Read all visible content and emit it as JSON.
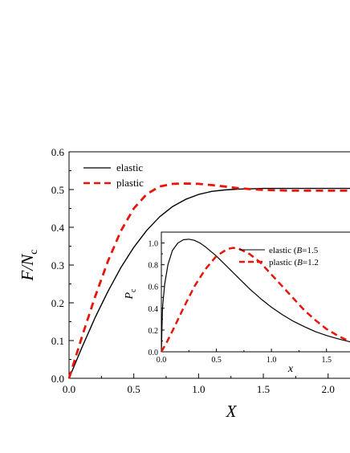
{
  "chart_data": [
    {
      "type": "line",
      "xlabel": {
        "main": "X",
        "sub": ""
      },
      "ylabel": {
        "main": "F/N",
        "sub": "c"
      },
      "xlim": [
        0.0,
        2.2
      ],
      "ylim": [
        0.0,
        0.6
      ],
      "xticks": [
        "0.0",
        "0.5",
        "1.0",
        "1.5",
        "2.0"
      ],
      "yticks": [
        "0.0",
        "0.1",
        "0.2",
        "0.3",
        "0.4",
        "0.5",
        "0.6"
      ],
      "legend_position": "top-left",
      "series": [
        {
          "name": "elastic",
          "color": "#000000",
          "style": "solid",
          "x": [
            0.0,
            0.1,
            0.2,
            0.3,
            0.4,
            0.5,
            0.6,
            0.7,
            0.8,
            0.9,
            1.0,
            1.1,
            1.2,
            1.3,
            1.4,
            1.5,
            1.6,
            1.7,
            1.8,
            1.9,
            2.0,
            2.1,
            2.2
          ],
          "y": [
            0.0,
            0.082,
            0.16,
            0.23,
            0.293,
            0.347,
            0.392,
            0.428,
            0.455,
            0.474,
            0.487,
            0.495,
            0.499,
            0.501,
            0.502,
            0.503,
            0.503,
            0.503,
            0.503,
            0.503,
            0.503,
            0.503,
            0.503
          ]
        },
        {
          "name": "plastic",
          "color": "#e8150b",
          "style": "dashed",
          "x": [
            0.0,
            0.1,
            0.2,
            0.3,
            0.4,
            0.5,
            0.6,
            0.7,
            0.8,
            0.9,
            1.0,
            1.1,
            1.2,
            1.3,
            1.4,
            1.5,
            1.6,
            1.7,
            1.8,
            1.9,
            2.0,
            2.1,
            2.2
          ],
          "y": [
            0.0,
            0.11,
            0.215,
            0.31,
            0.39,
            0.45,
            0.488,
            0.508,
            0.515,
            0.516,
            0.515,
            0.512,
            0.508,
            0.504,
            0.501,
            0.499,
            0.498,
            0.497,
            0.497,
            0.497,
            0.497,
            0.497,
            0.497
          ]
        }
      ]
    },
    {
      "type": "line",
      "xlabel": {
        "main": "x",
        "sub": ""
      },
      "ylabel": {
        "main": "P",
        "sub": "c"
      },
      "xlim": [
        0.0,
        1.75
      ],
      "ylim": [
        0.0,
        1.1
      ],
      "xticks": [
        "0.0",
        "0.5",
        "1.0",
        "1.5"
      ],
      "yticks": [
        "0.0",
        "0.2",
        "0.4",
        "0.6",
        "0.8",
        "1.0"
      ],
      "legend_position": "top-right",
      "series": [
        {
          "name": "elastic (B=1.5",
          "legend_parts": [
            "elastic (",
            "B",
            "=1.5"
          ],
          "color": "#000000",
          "style": "solid",
          "x": [
            0.0,
            0.01,
            0.03,
            0.06,
            0.1,
            0.15,
            0.2,
            0.25,
            0.3,
            0.35,
            0.4,
            0.5,
            0.6,
            0.7,
            0.8,
            0.9,
            1.0,
            1.1,
            1.2,
            1.3,
            1.4,
            1.5,
            1.6,
            1.7,
            1.75
          ],
          "y": [
            0.0,
            0.4,
            0.62,
            0.8,
            0.93,
            1.0,
            1.03,
            1.035,
            1.025,
            1.0,
            0.965,
            0.88,
            0.78,
            0.68,
            0.58,
            0.49,
            0.41,
            0.34,
            0.28,
            0.23,
            0.185,
            0.15,
            0.12,
            0.095,
            0.085
          ]
        },
        {
          "name": "plastic (B=1.2",
          "legend_parts": [
            "plastic (",
            "B",
            "=1.2"
          ],
          "color": "#e8150b",
          "style": "dashed",
          "x": [
            0.0,
            0.05,
            0.1,
            0.2,
            0.3,
            0.4,
            0.5,
            0.6,
            0.65,
            0.7,
            0.8,
            0.9,
            1.0,
            1.1,
            1.2,
            1.3,
            1.4,
            1.5,
            1.6,
            1.7,
            1.75
          ],
          "y": [
            0.0,
            0.09,
            0.19,
            0.4,
            0.6,
            0.76,
            0.88,
            0.945,
            0.955,
            0.95,
            0.9,
            0.82,
            0.71,
            0.6,
            0.49,
            0.38,
            0.29,
            0.21,
            0.15,
            0.1,
            0.08
          ]
        }
      ]
    }
  ]
}
